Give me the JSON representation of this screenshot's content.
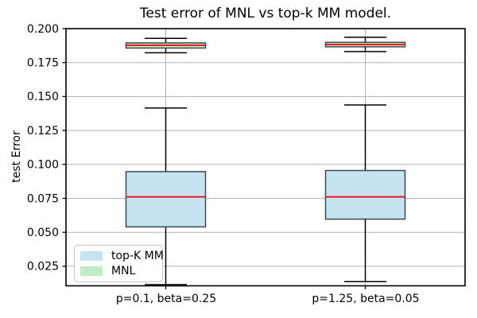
{
  "chart_data": {
    "type": "boxplot",
    "title": "Test error of MNL vs top-k MM model.",
    "ylabel": "test Error",
    "xlabel": "",
    "categories": [
      "p=0.1, beta=0.25",
      "p=1.25, beta=0.05"
    ],
    "ylim": [
      0.0106,
      0.2
    ],
    "grid": true,
    "yticks": [
      {
        "v": 0.2,
        "label": "0.200"
      },
      {
        "v": 0.175,
        "label": "0.175"
      },
      {
        "v": 0.15,
        "label": "0.150"
      },
      {
        "v": 0.125,
        "label": "0.125"
      },
      {
        "v": 0.1,
        "label": "0.100"
      },
      {
        "v": 0.075,
        "label": "0.075"
      },
      {
        "v": 0.05,
        "label": "0.050"
      },
      {
        "v": 0.025,
        "label": "0.025"
      }
    ],
    "legend": {
      "position": "lower left",
      "items": [
        {
          "label": "top-K MM",
          "color": "#c6e3f2"
        },
        {
          "label": "MNL",
          "color": "#bfeec6"
        }
      ]
    },
    "series": [
      {
        "name": "top-K MM",
        "fill": "#c6e3f2",
        "boxes": [
          {
            "category": "p=0.1, beta=0.25",
            "whislo": 0.0115,
            "q1": 0.054,
            "med": 0.0761,
            "q3": 0.0947,
            "whishi": 0.1415
          },
          {
            "category": "p=1.25, beta=0.05",
            "whislo": 0.0137,
            "q1": 0.0597,
            "med": 0.0761,
            "q3": 0.0955,
            "whishi": 0.1438
          }
        ]
      },
      {
        "name": "MNL",
        "fill": "#bfeec6",
        "boxes": [
          {
            "category": "p=0.1, beta=0.25",
            "whislo": 0.1822,
            "q1": 0.1857,
            "med": 0.1878,
            "q3": 0.1895,
            "whishi": 0.1928
          },
          {
            "category": "p=1.25, beta=0.05",
            "whislo": 0.1831,
            "q1": 0.1866,
            "med": 0.1883,
            "q3": 0.1899,
            "whishi": 0.1936
          }
        ]
      }
    ],
    "colors": {
      "median": "#ee1111",
      "whisker": "#000000",
      "box_edge": "#3a4a52",
      "grid": "#b2b2b2",
      "spine": "#000000",
      "tick": "#000000"
    }
  }
}
